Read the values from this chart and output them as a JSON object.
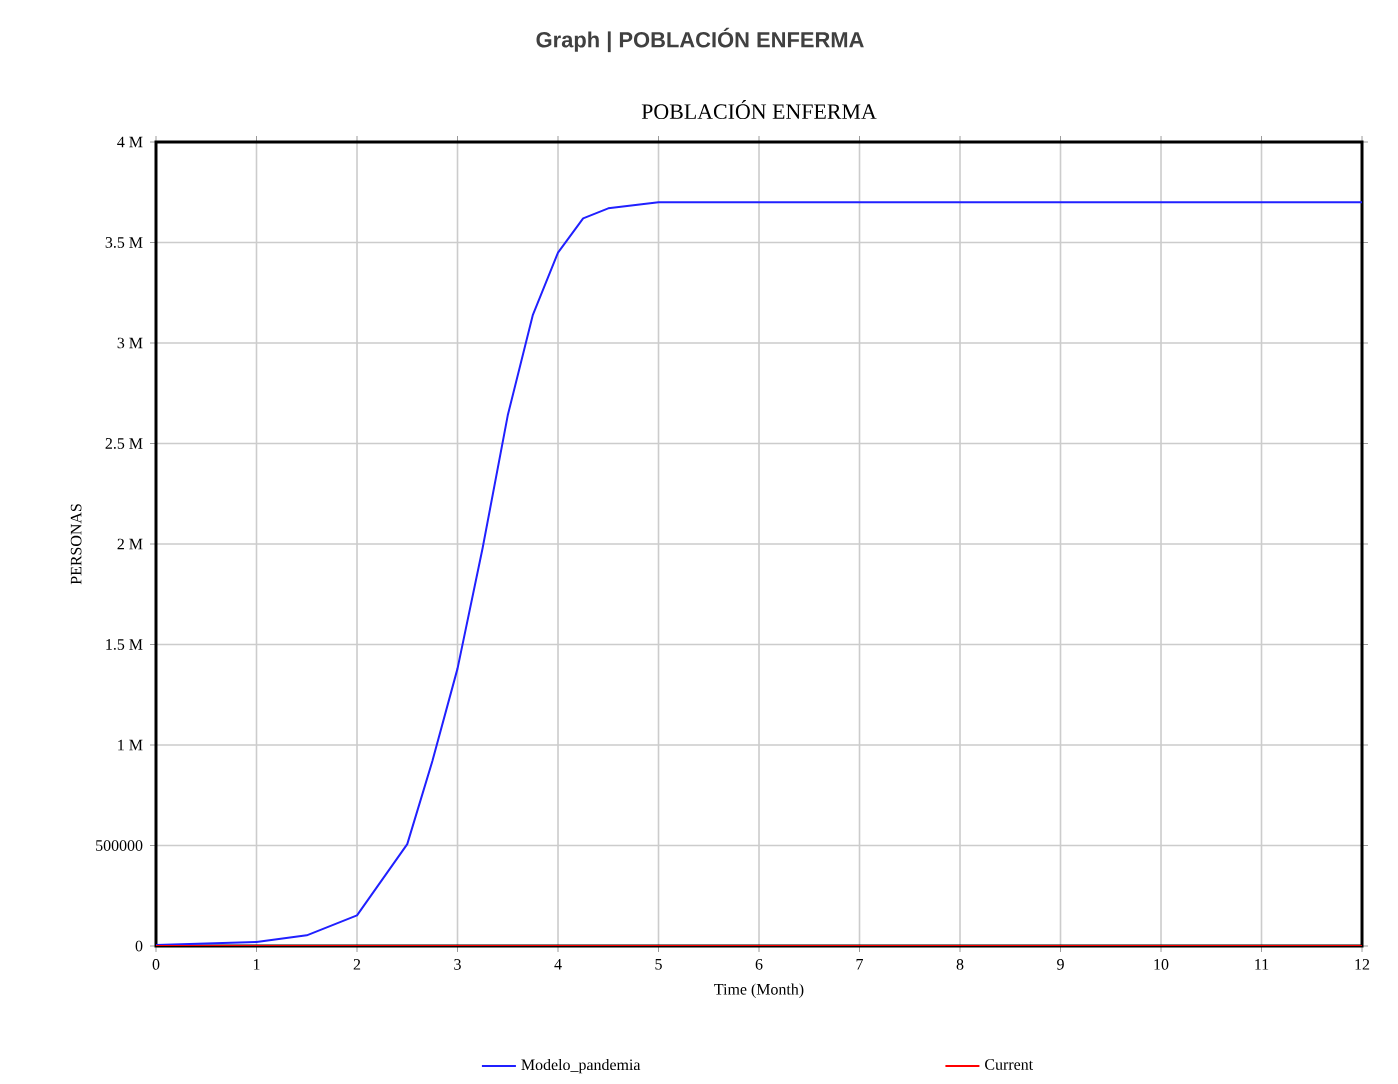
{
  "chart_data": {
    "type": "line",
    "title": "POBLACIÓN ENFERMA",
    "annotations": [
      "Graph | POBLACIÓN ENFERMA"
    ],
    "xlabel": "Time (Month)",
    "ylabel": "PERSONAS",
    "x": [
      0,
      1,
      1.5,
      2,
      2.5,
      2.75,
      3,
      3.25,
      3.5,
      3.75,
      4,
      4.25,
      4.5,
      5,
      6,
      7,
      8,
      9,
      10,
      11,
      12
    ],
    "series": [
      {
        "name": "Modelo_pandemia",
        "color": "#2020ff",
        "values": [
          5000,
          20000,
          53000,
          152000,
          507000,
          920000,
          1380000,
          1980000,
          2640000,
          3140000,
          3450000,
          3620000,
          3670000,
          3700000,
          3700000,
          3700000,
          3700000,
          3700000,
          3700000,
          3700000,
          3700000
        ]
      },
      {
        "name": "Current",
        "color": "#ff0000",
        "values": [
          0,
          0,
          0,
          0,
          0,
          0,
          0,
          0,
          0,
          0,
          0,
          0,
          0,
          0,
          0,
          0,
          0,
          0,
          0,
          0,
          0
        ]
      }
    ],
    "xlim": [
      0,
      12
    ],
    "xticks": [
      0,
      1,
      2,
      3,
      4,
      5,
      6,
      7,
      8,
      9,
      10,
      11,
      12
    ],
    "ylim": [
      0,
      4000000
    ],
    "yticks": [
      0,
      500000,
      {
        "value": 1000000,
        "label": "1 M"
      },
      {
        "value": 1500000,
        "label": "1.5 M"
      },
      {
        "value": 2000000,
        "label": "2 M"
      },
      {
        "value": 2500000,
        "label": "2.5 M"
      },
      {
        "value": 3000000,
        "label": "3 M"
      },
      {
        "value": 3500000,
        "label": "3.5 M"
      },
      {
        "value": 4000000,
        "label": "4 M"
      }
    ],
    "grid": true,
    "legend": "bottom",
    "marker": "none",
    "line_style": "solid"
  }
}
